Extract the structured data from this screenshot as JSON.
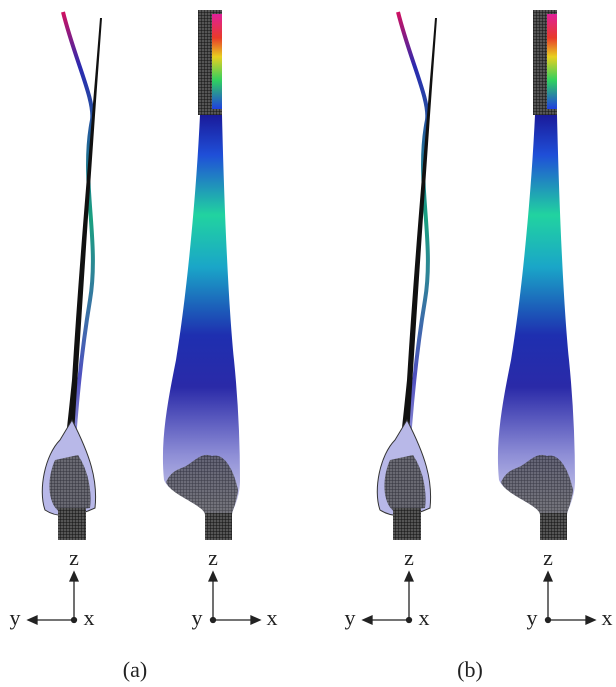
{
  "panels": [
    {
      "caption": "(a)",
      "triads": [
        {
          "up": "z",
          "left": "y",
          "right": "x"
        },
        {
          "up": "z",
          "left": "y",
          "right": "x"
        }
      ]
    },
    {
      "caption": "(b)",
      "triads": [
        {
          "up": "z",
          "left": "y",
          "right": "x"
        },
        {
          "up": "z",
          "left": "y",
          "right": "x"
        }
      ]
    }
  ]
}
